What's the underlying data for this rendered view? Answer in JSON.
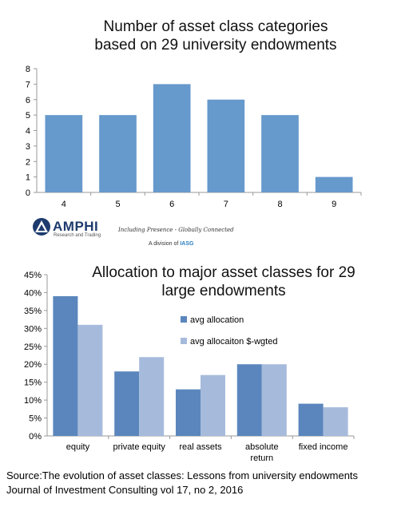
{
  "chart_data": [
    {
      "type": "bar",
      "title_lines": [
        "Number of asset class categories",
        "based on 29 university endowments"
      ],
      "categories": [
        "4",
        "5",
        "6",
        "7",
        "8",
        "9"
      ],
      "values": [
        5,
        5,
        7,
        6,
        5,
        1
      ],
      "ylim": [
        0,
        8
      ],
      "yticks": [
        "0",
        "1",
        "2",
        "3",
        "4",
        "5",
        "6",
        "7",
        "8"
      ],
      "color": "#6699cc",
      "grid": false
    },
    {
      "type": "bar",
      "title_lines": [
        "Allocation to major asset classes for 29",
        "large endowments"
      ],
      "categories": [
        [
          "equity"
        ],
        [
          "private equity"
        ],
        [
          "real assets"
        ],
        [
          "absolute",
          "return"
        ],
        [
          "fixed income"
        ]
      ],
      "series": [
        {
          "name": "avg allocation",
          "values": [
            39,
            18,
            13,
            20,
            9
          ],
          "color": "#5b86bd"
        },
        {
          "name": "avg allocaiton $-wgted",
          "values": [
            31,
            22,
            17,
            20,
            8
          ],
          "color": "#a6bbdc"
        }
      ],
      "ylim": [
        0,
        45
      ],
      "yticks": [
        "0%",
        "5%",
        "10%",
        "15%",
        "20%",
        "25%",
        "30%",
        "35%",
        "40%",
        "45%"
      ],
      "legend_position": "top-right",
      "grid": false
    }
  ],
  "logo": {
    "name": "AMPHI",
    "subtitle": "Research and Trading",
    "tagline": "Including Presence - Globally Connected",
    "division": "A division of",
    "parent": "IASG"
  },
  "source": {
    "line1": "Source:The evolution of asset classes: Lessons from university endowments",
    "line2": "Journal of Investment Consulting vol 17, no 2, 2016"
  }
}
